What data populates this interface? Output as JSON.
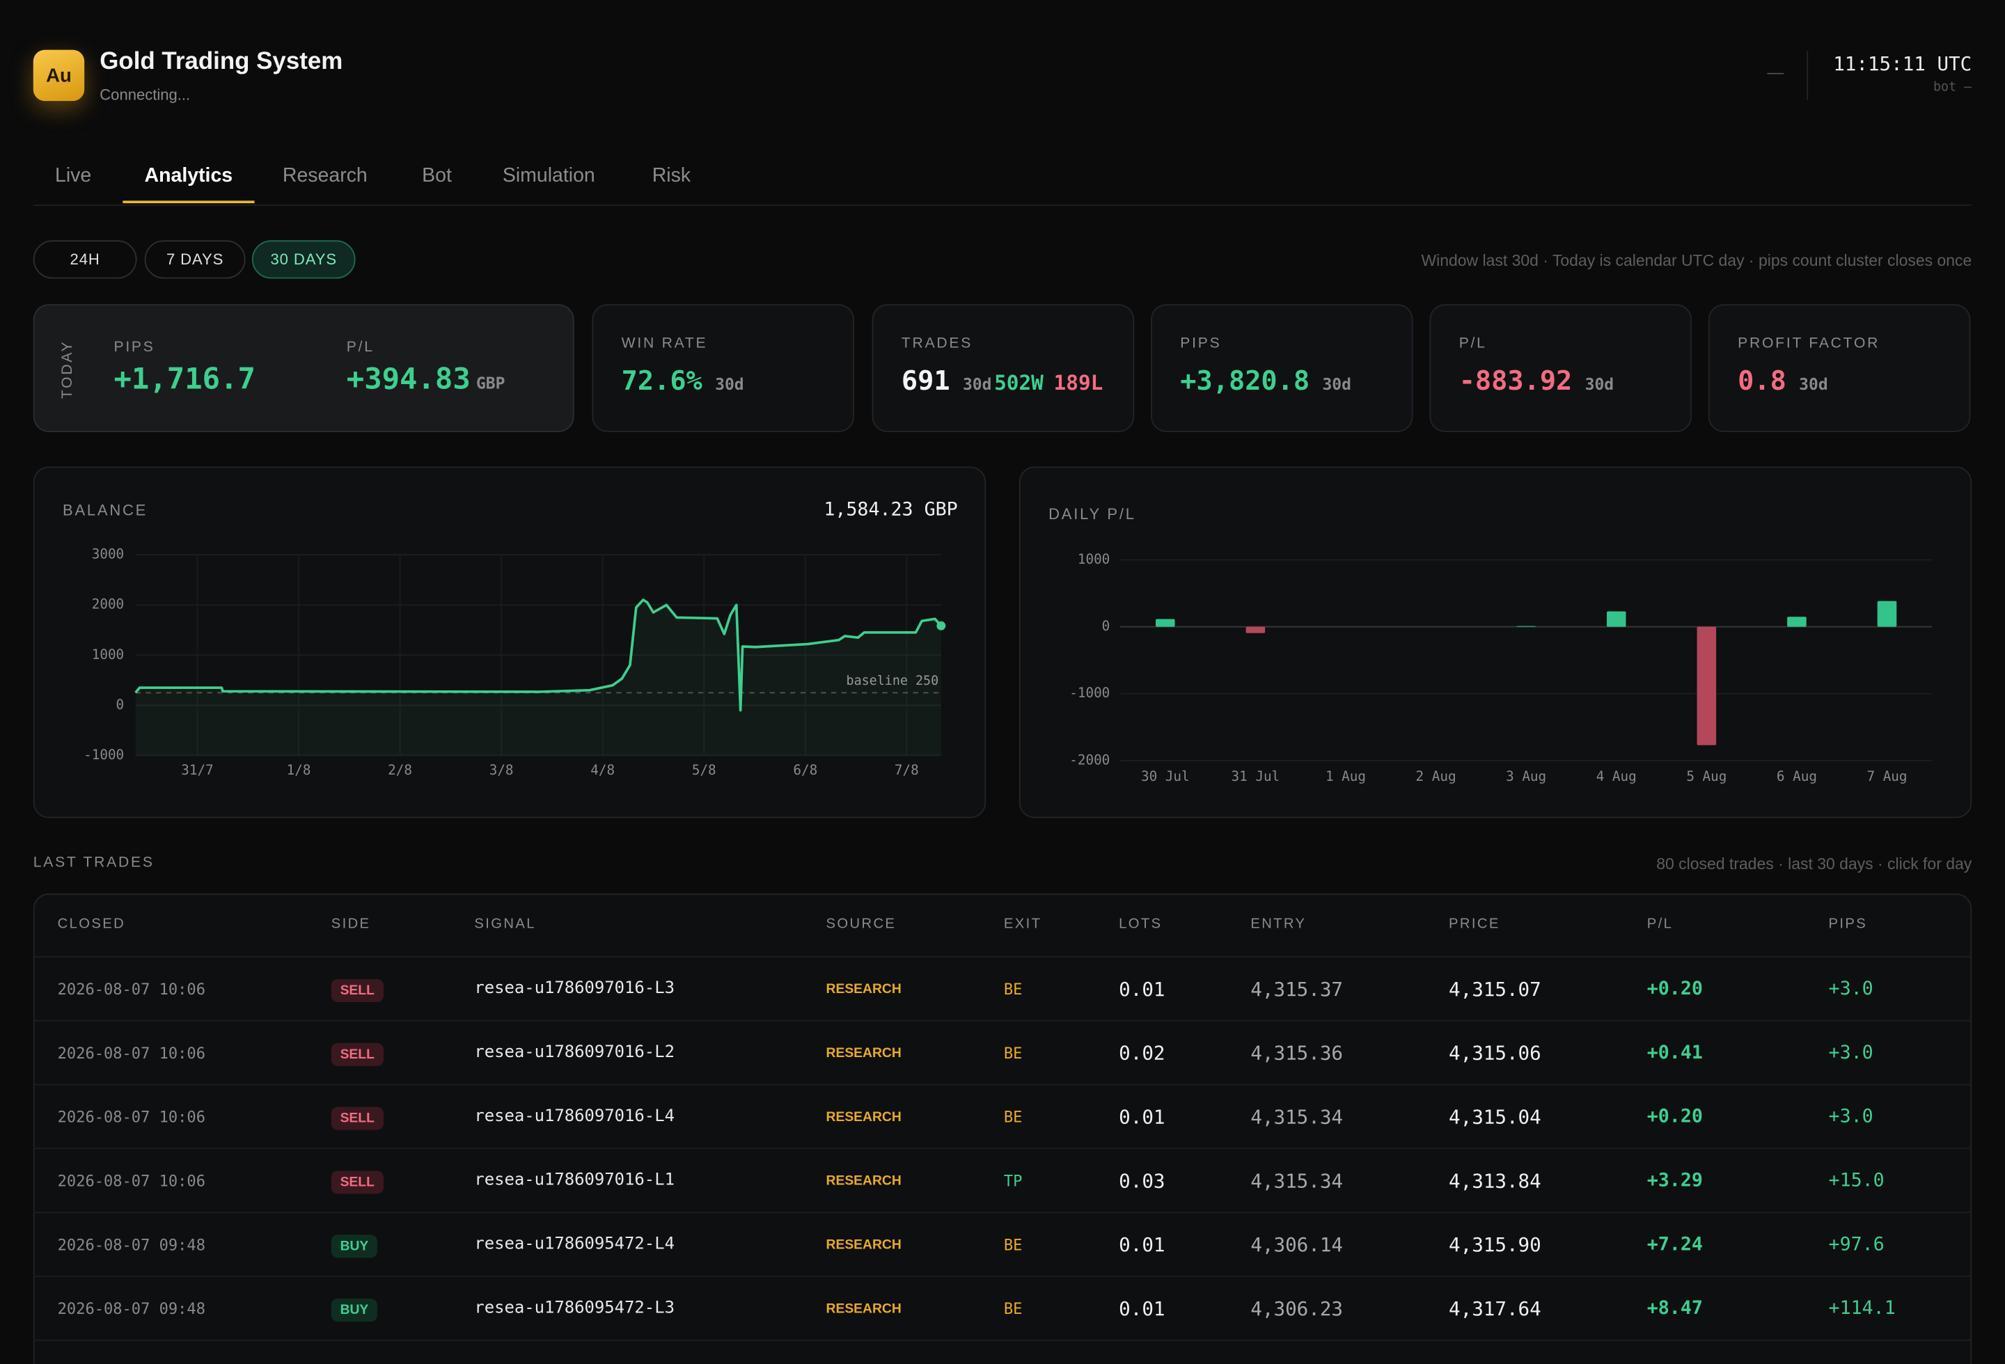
{
  "header": {
    "logo": "Au",
    "title": "Gold Trading System",
    "status": "Connecting...",
    "indicator": "—",
    "clock": "11:15:11 UTC",
    "bot": "bot —"
  },
  "tabs": {
    "items": [
      "Live",
      "Analytics",
      "Research",
      "Bot",
      "Simulation",
      "Risk"
    ],
    "active": 1
  },
  "filters": {
    "items": [
      "24H",
      "7 DAYS",
      "30 DAYS"
    ],
    "active": 2,
    "note": "Window last 30d · Today is calendar UTC day · pips count cluster closes once"
  },
  "kpis": {
    "today": {
      "label": "TODAY",
      "pips_label": "PIPS",
      "pips": "+1,716.7",
      "pl_label": "P/L",
      "pl": "+394.83",
      "pl_unit": "GBP"
    },
    "cards": [
      {
        "label": "WIN RATE",
        "value": "72.6%",
        "period": "30d",
        "tone": "pos"
      },
      {
        "label": "TRADES",
        "value": "691",
        "period": "30d",
        "wins": "502W",
        "losses": "189L",
        "tone": "plain"
      },
      {
        "label": "PIPS",
        "value": "+3,820.8",
        "period": "30d",
        "tone": "pos"
      },
      {
        "label": "P/L",
        "value": "-883.92",
        "period": "30d",
        "tone": "neg"
      },
      {
        "label": "PROFIT FACTOR",
        "value": "0.8",
        "period": "30d",
        "tone": "neg"
      }
    ]
  },
  "chart_data": [
    {
      "type": "line",
      "title": "BALANCE",
      "current": "1,584.23 GBP",
      "color": "#3ecf8e",
      "x": [
        0.39,
        0.43,
        1.24,
        1.25,
        4.37,
        4.87,
        5.1,
        5.19,
        5.27,
        5.33,
        5.4,
        5.44,
        5.5,
        5.63,
        5.73,
        6.13,
        6.2,
        6.26,
        6.32,
        6.36,
        6.38,
        6.51,
        7.02,
        7.33,
        7.39,
        7.52,
        7.58,
        8.09,
        8.15,
        8.28,
        8.34
      ],
      "values": [
        250,
        350,
        350,
        280,
        270,
        300,
        400,
        530,
        800,
        1950,
        2100,
        2050,
        1850,
        2000,
        1750,
        1730,
        1420,
        1800,
        2000,
        -100,
        1170,
        1160,
        1220,
        1300,
        1380,
        1350,
        1450,
        1450,
        1680,
        1720,
        1584
      ],
      "xlim": [
        0.39,
        8.34
      ],
      "xticks": [
        {
          "value": 1,
          "label": "31/7"
        },
        {
          "value": 2,
          "label": "1/8"
        },
        {
          "value": 3,
          "label": "2/8"
        },
        {
          "value": 4,
          "label": "3/8"
        },
        {
          "value": 5,
          "label": "4/8"
        },
        {
          "value": 6,
          "label": "5/8"
        },
        {
          "value": 7,
          "label": "6/8"
        },
        {
          "value": 8,
          "label": "7/8"
        }
      ],
      "ylim": [
        -1000,
        3000
      ],
      "yticks": [
        -1000,
        0,
        1000,
        2000,
        3000
      ],
      "baseline": {
        "value": 250,
        "label": "baseline 250"
      },
      "grid": true
    },
    {
      "type": "bar",
      "title": "DAILY P/L",
      "categories": [
        "30 Jul",
        "31 Jul",
        "1 Aug",
        "2 Aug",
        "3 Aug",
        "4 Aug",
        "5 Aug",
        "6 Aug",
        "7 Aug"
      ],
      "values": [
        115,
        -95,
        0,
        0,
        10,
        230,
        -1770,
        150,
        385
      ],
      "colors": {
        "pos": "#34c48b",
        "neg": "#b4485b"
      },
      "ylim": [
        -2000,
        1000
      ],
      "yticks": [
        -2000,
        -1000,
        0,
        1000
      ],
      "grid": true
    }
  ],
  "trades": {
    "title": "LAST TRADES",
    "note": "80 closed trades · last 30 days · click for day",
    "columns": [
      "CLOSED",
      "SIDE",
      "SIGNAL",
      "SOURCE",
      "EXIT",
      "LOTS",
      "ENTRY",
      "PRICE",
      "P/L",
      "PIPS"
    ],
    "side_tones": {
      "SELL": "neg",
      "BUY": "pos"
    },
    "exit_tones": {
      "BE": "warn",
      "TP": "pos"
    },
    "rows": [
      [
        "2026-08-07 10:06",
        "SELL",
        "resea-u1786097016-L3",
        "RESEARCH",
        "BE",
        "0.01",
        "4,315.37",
        "4,315.07",
        "+0.20",
        "+3.0"
      ],
      [
        "2026-08-07 10:06",
        "SELL",
        "resea-u1786097016-L2",
        "RESEARCH",
        "BE",
        "0.02",
        "4,315.36",
        "4,315.06",
        "+0.41",
        "+3.0"
      ],
      [
        "2026-08-07 10:06",
        "SELL",
        "resea-u1786097016-L4",
        "RESEARCH",
        "BE",
        "0.01",
        "4,315.34",
        "4,315.04",
        "+0.20",
        "+3.0"
      ],
      [
        "2026-08-07 10:06",
        "SELL",
        "resea-u1786097016-L1",
        "RESEARCH",
        "TP",
        "0.03",
        "4,315.34",
        "4,313.84",
        "+3.29",
        "+15.0"
      ],
      [
        "2026-08-07 09:48",
        "BUY",
        "resea-u1786095472-L4",
        "RESEARCH",
        "BE",
        "0.01",
        "4,306.14",
        "4,315.90",
        "+7.24",
        "+97.6"
      ],
      [
        "2026-08-07 09:48",
        "BUY",
        "resea-u1786095472-L3",
        "RESEARCH",
        "BE",
        "0.01",
        "4,306.23",
        "4,317.64",
        "+8.47",
        "+114.1"
      ]
    ]
  }
}
